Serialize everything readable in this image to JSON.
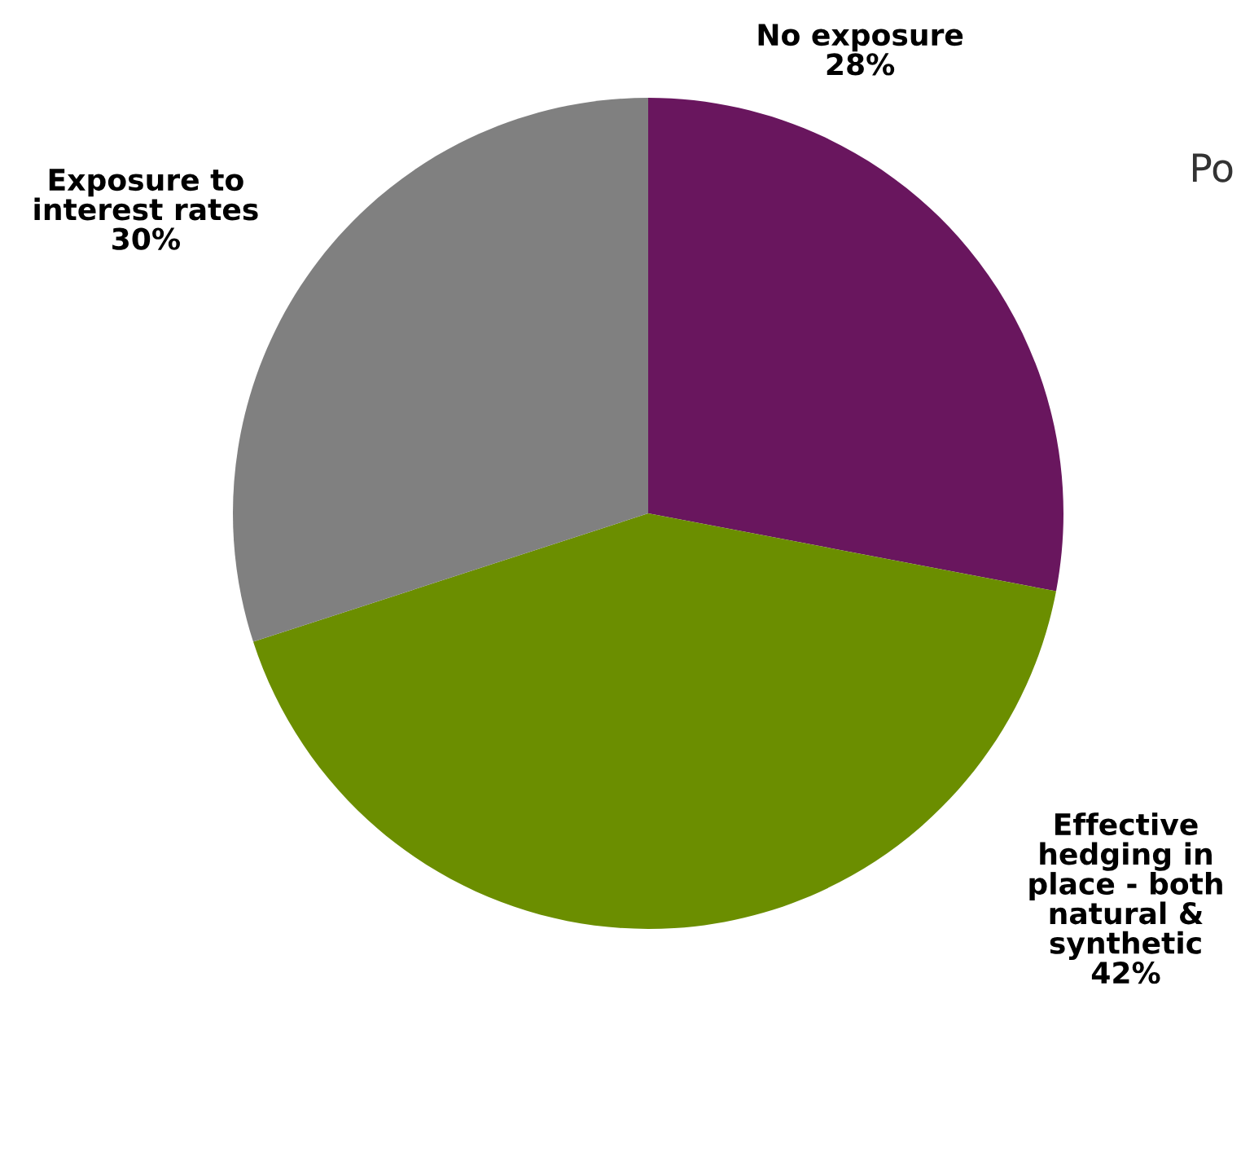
{
  "chart_data": {
    "type": "pie",
    "categories": [
      "No exposure",
      "Effective\nhedging in\nplace - both\nnatural &\nsynthetic",
      "Exposure to\ninterest rates"
    ],
    "values": [
      28,
      42,
      30
    ],
    "value_labels": [
      "28%",
      "42%",
      "30%"
    ],
    "colors": [
      "#69165e",
      "#6b8e00",
      "#808080"
    ],
    "annotations": [
      "Po"
    ]
  }
}
